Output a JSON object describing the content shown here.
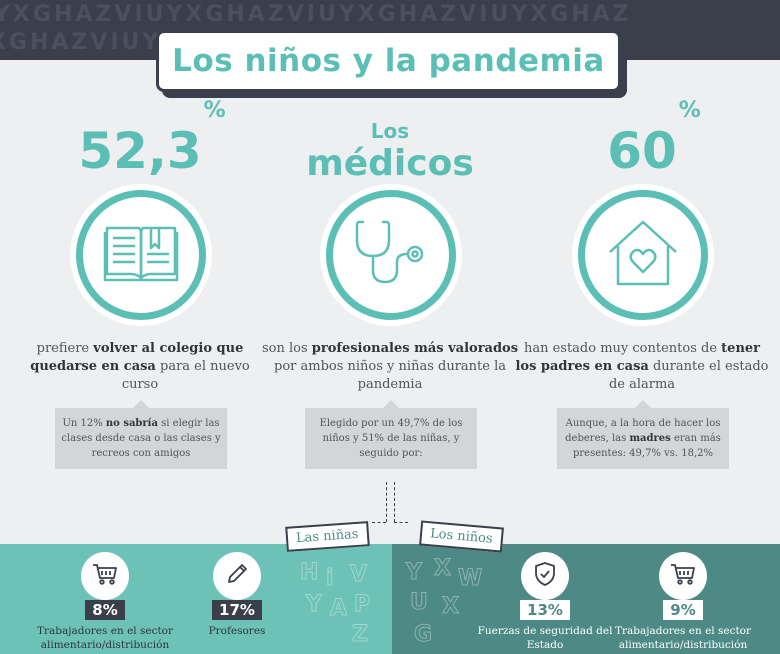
{
  "header": {
    "title": "Los niños y la pandemia",
    "pattern_letters": "YXGHAZVIUYXGHAZVIUYXGHAZVIUYXGHAZ"
  },
  "columns": [
    {
      "big": "52,3",
      "big_sup": "%",
      "icon": "open-book-icon",
      "desc": [
        {
          "t": "prefiere ",
          "b": false
        },
        {
          "t": "volver al colegio que quedarse en casa",
          "b": true
        },
        {
          "t": " para el nuevo curso",
          "b": false
        }
      ],
      "note": [
        {
          "t": "Un 12% ",
          "b": false
        },
        {
          "t": "no sabría",
          "b": true
        },
        {
          "t": " si elegir las clases desde casa o las clases y recreos con amigos",
          "b": false
        }
      ]
    },
    {
      "small": "Los",
      "big": "médicos",
      "icon": "stethoscope-icon",
      "desc": [
        {
          "t": "son los ",
          "b": false
        },
        {
          "t": "profesionales más valorados",
          "b": true
        },
        {
          "t": " por ambos niños y niñas durante la pandemia",
          "b": false
        }
      ],
      "note": [
        {
          "t": "Elegido por un 49,7% de los niños y 51% de las niñas, y seguido por:",
          "b": false
        }
      ]
    },
    {
      "big": "60",
      "big_sup": "%",
      "icon": "house-heart-icon",
      "desc": [
        {
          "t": "han estado muy contentos de ",
          "b": false
        },
        {
          "t": "tener los padres en casa",
          "b": true
        },
        {
          "t": " durante el estado de alarma",
          "b": false
        }
      ],
      "note": [
        {
          "t": "Aunque, a la hora de hacer los deberes, las ",
          "b": false
        },
        {
          "t": "madres",
          "b": true
        },
        {
          "t": " eran más presentes: 49,7% vs. 18,2%",
          "b": false
        }
      ]
    }
  ],
  "tags": {
    "ninas": "Las niñas",
    "ninos": "Los niños"
  },
  "ninas_items": [
    {
      "pct": "8%",
      "label": "Trabajadores en el sector alimentario/distribución",
      "icon": "shopping-cart-icon"
    },
    {
      "pct": "17%",
      "label": "Profesores",
      "icon": "pencil-icon"
    }
  ],
  "ninos_items": [
    {
      "pct": "13%",
      "label": "Fuerzas de seguridad del Estado",
      "icon": "shield-check-icon"
    },
    {
      "pct": "9%",
      "label": "Trabajadores en el sector alimentario/distribución",
      "icon": "shopping-cart-icon"
    }
  ],
  "colors": {
    "teal": "#5bbfb5",
    "dark": "#3a3f4b",
    "darkteal": "#4e8a85",
    "lightteal": "#6dc2b8",
    "bg": "#eeeff0"
  }
}
